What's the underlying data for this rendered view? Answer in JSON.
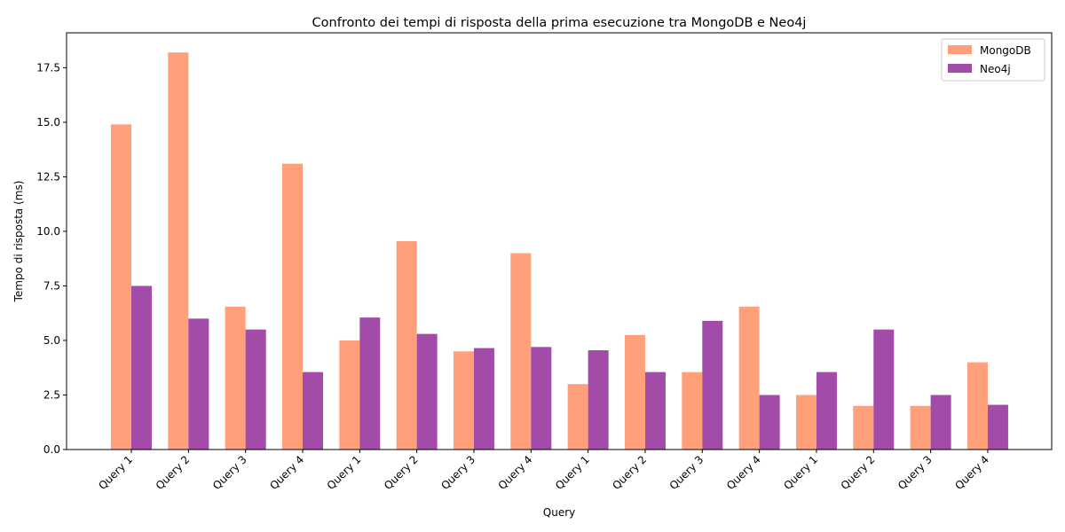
{
  "chart_data": {
    "type": "bar",
    "title": "Confronto dei tempi di risposta della prima esecuzione tra MongoDB e Neo4j",
    "xlabel": "Query",
    "ylabel": "Tempo di risposta (ms)",
    "ylim": [
      0,
      19.1
    ],
    "yticks": [
      0.0,
      2.5,
      5.0,
      7.5,
      10.0,
      12.5,
      15.0,
      17.5
    ],
    "ytick_labels": [
      "0.0",
      "2.5",
      "5.0",
      "7.5",
      "10.0",
      "12.5",
      "15.0",
      "17.5"
    ],
    "categories": [
      "Query 1",
      "Query 2",
      "Query 3",
      "Query 4",
      "Query 1",
      "Query 2",
      "Query 3",
      "Query 4",
      "Query 1",
      "Query 2",
      "Query 3",
      "Query 4",
      "Query 1",
      "Query 2",
      "Query 3",
      "Query 4"
    ],
    "series": [
      {
        "name": "MongoDB",
        "color": "#ffa07a",
        "values": [
          14.9,
          18.2,
          6.55,
          13.1,
          5.0,
          9.55,
          4.5,
          9.0,
          3.0,
          5.25,
          3.55,
          6.55,
          2.5,
          2.0,
          2.0,
          4.0
        ]
      },
      {
        "name": "Neo4j",
        "color": "#a24ba8",
        "values": [
          7.5,
          6.0,
          5.5,
          3.55,
          6.05,
          5.3,
          4.65,
          4.7,
          4.55,
          3.55,
          5.9,
          2.5,
          3.55,
          5.5,
          2.5,
          2.05
        ]
      }
    ],
    "legend_position": "top-right",
    "grid": false
  }
}
